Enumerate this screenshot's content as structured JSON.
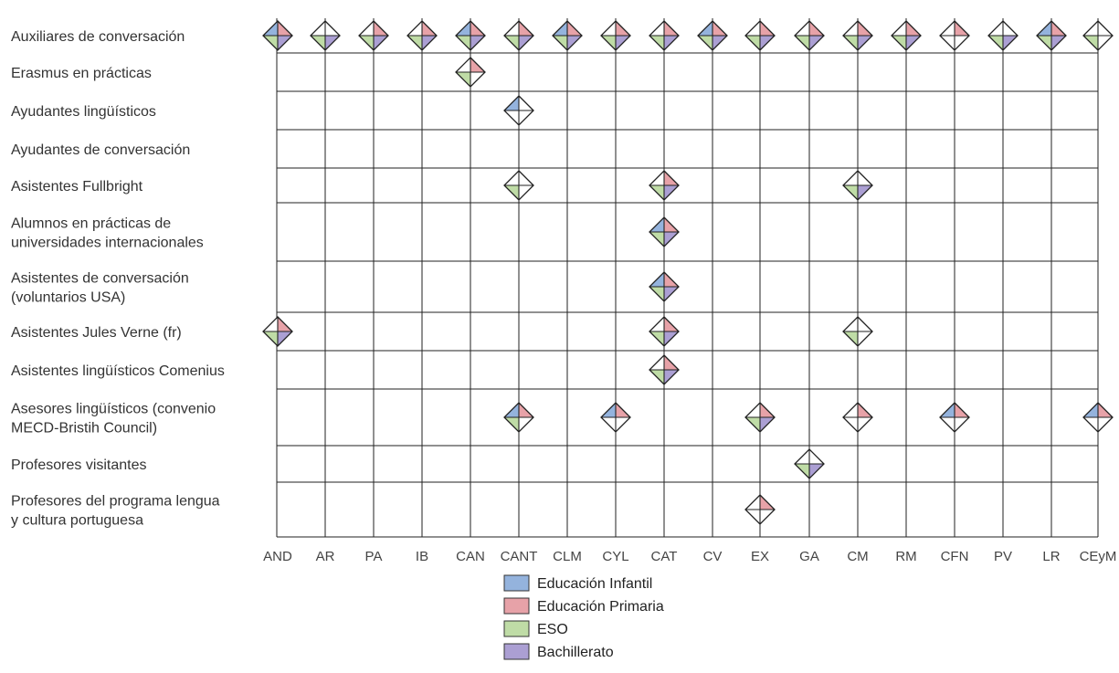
{
  "chart_data": {
    "type": "table",
    "title": "",
    "columns": [
      "AND",
      "AR",
      "PA",
      "IB",
      "CAN",
      "CANT",
      "CLM",
      "CYL",
      "CAT",
      "CV",
      "EX",
      "GA",
      "CM",
      "RM",
      "CFN",
      "PV",
      "LR",
      "CEyM"
    ],
    "rows": [
      {
        "label": [
          "Auxiliares de conversación"
        ]
      },
      {
        "label": [
          "Erasmus en prácticas"
        ]
      },
      {
        "label": [
          "Ayudantes lingüísticos"
        ]
      },
      {
        "label": [
          "Ayudantes de conversación"
        ]
      },
      {
        "label": [
          "Asistentes Fullbright"
        ]
      },
      {
        "label": [
          "Alumnos en prácticas de",
          "universidades internacionales"
        ]
      },
      {
        "label": [
          "Asistentes de conversación",
          "(voluntarios USA)"
        ]
      },
      {
        "label": [
          "Asistentes Jules Verne (fr)"
        ]
      },
      {
        "label": [
          "Asistentes lingüísticos Comenius"
        ]
      },
      {
        "label": [
          "Asesores lingüísticos (convenio",
          "MECD-Bristih Council)"
        ]
      },
      {
        "label": [
          "Profesores visitantes"
        ]
      },
      {
        "label": [
          "Profesores del programa lengua",
          "y cultura portuguesa"
        ]
      }
    ],
    "legend": [
      {
        "key": "infantil",
        "label": "Educación Infantil",
        "color": "#94b3dd"
      },
      {
        "key": "primaria",
        "label": "Educación Primaria",
        "color": "#e7a2a8"
      },
      {
        "key": "eso",
        "label": "ESO",
        "color": "#bfdca6"
      },
      {
        "key": "bachillerato",
        "label": "Bachillerato",
        "color": "#ab9fd3"
      }
    ],
    "cells": [
      {
        "row": 0,
        "col": "AND",
        "levels": [
          "infantil",
          "primaria",
          "eso",
          "bachillerato"
        ]
      },
      {
        "row": 0,
        "col": "AR",
        "levels": [
          "eso",
          "bachillerato"
        ]
      },
      {
        "row": 0,
        "col": "PA",
        "levels": [
          "primaria",
          "eso",
          "bachillerato"
        ]
      },
      {
        "row": 0,
        "col": "IB",
        "levels": [
          "primaria",
          "eso",
          "bachillerato"
        ]
      },
      {
        "row": 0,
        "col": "CAN",
        "levels": [
          "infantil",
          "primaria",
          "eso",
          "bachillerato"
        ]
      },
      {
        "row": 0,
        "col": "CANT",
        "levels": [
          "primaria",
          "eso",
          "bachillerato"
        ]
      },
      {
        "row": 0,
        "col": "CLM",
        "levels": [
          "infantil",
          "primaria",
          "eso",
          "bachillerato"
        ]
      },
      {
        "row": 0,
        "col": "CYL",
        "levels": [
          "primaria",
          "eso",
          "bachillerato"
        ]
      },
      {
        "row": 0,
        "col": "CAT",
        "levels": [
          "primaria",
          "eso",
          "bachillerato"
        ]
      },
      {
        "row": 0,
        "col": "CV",
        "levels": [
          "infantil",
          "primaria",
          "eso",
          "bachillerato"
        ]
      },
      {
        "row": 0,
        "col": "EX",
        "levels": [
          "primaria",
          "eso",
          "bachillerato"
        ]
      },
      {
        "row": 0,
        "col": "GA",
        "levels": [
          "primaria",
          "eso",
          "bachillerato"
        ]
      },
      {
        "row": 0,
        "col": "CM",
        "levels": [
          "primaria",
          "eso",
          "bachillerato"
        ]
      },
      {
        "row": 0,
        "col": "RM",
        "levels": [
          "primaria",
          "eso",
          "bachillerato"
        ]
      },
      {
        "row": 0,
        "col": "CFN",
        "levels": [
          "primaria"
        ]
      },
      {
        "row": 0,
        "col": "PV",
        "levels": [
          "eso",
          "bachillerato"
        ]
      },
      {
        "row": 0,
        "col": "LR",
        "levels": [
          "infantil",
          "primaria",
          "eso",
          "bachillerato"
        ]
      },
      {
        "row": 0,
        "col": "CEyM",
        "levels": [
          "eso"
        ]
      },
      {
        "row": 1,
        "col": "CAN",
        "levels": [
          "primaria",
          "eso"
        ]
      },
      {
        "row": 2,
        "col": "CANT",
        "levels": [
          "infantil"
        ]
      },
      {
        "row": 4,
        "col": "CANT",
        "levels": [
          "eso"
        ]
      },
      {
        "row": 4,
        "col": "CAT",
        "levels": [
          "primaria",
          "eso",
          "bachillerato"
        ]
      },
      {
        "row": 4,
        "col": "CM",
        "levels": [
          "eso",
          "bachillerato"
        ]
      },
      {
        "row": 5,
        "col": "CAT",
        "levels": [
          "infantil",
          "primaria",
          "eso",
          "bachillerato"
        ]
      },
      {
        "row": 6,
        "col": "CAT",
        "levels": [
          "infantil",
          "primaria",
          "eso",
          "bachillerato"
        ]
      },
      {
        "row": 7,
        "col": "AND",
        "levels": [
          "primaria",
          "eso",
          "bachillerato"
        ]
      },
      {
        "row": 7,
        "col": "CAT",
        "levels": [
          "primaria",
          "eso",
          "bachillerato"
        ]
      },
      {
        "row": 7,
        "col": "CM",
        "levels": [
          "eso"
        ]
      },
      {
        "row": 8,
        "col": "CAT",
        "levels": [
          "primaria",
          "eso",
          "bachillerato"
        ]
      },
      {
        "row": 9,
        "col": "CANT",
        "levels": [
          "infantil",
          "primaria",
          "eso"
        ]
      },
      {
        "row": 9,
        "col": "CYL",
        "levels": [
          "infantil",
          "primaria"
        ]
      },
      {
        "row": 9,
        "col": "EX",
        "levels": [
          "primaria",
          "eso",
          "bachillerato"
        ]
      },
      {
        "row": 9,
        "col": "CM",
        "levels": [
          "primaria"
        ]
      },
      {
        "row": 9,
        "col": "CFN",
        "levels": [
          "infantil",
          "primaria"
        ]
      },
      {
        "row": 9,
        "col": "CEyM",
        "levels": [
          "infantil",
          "primaria"
        ]
      },
      {
        "row": 10,
        "col": "GA",
        "levels": [
          "eso",
          "bachillerato"
        ]
      },
      {
        "row": 11,
        "col": "EX",
        "levels": [
          "primaria"
        ]
      }
    ]
  }
}
